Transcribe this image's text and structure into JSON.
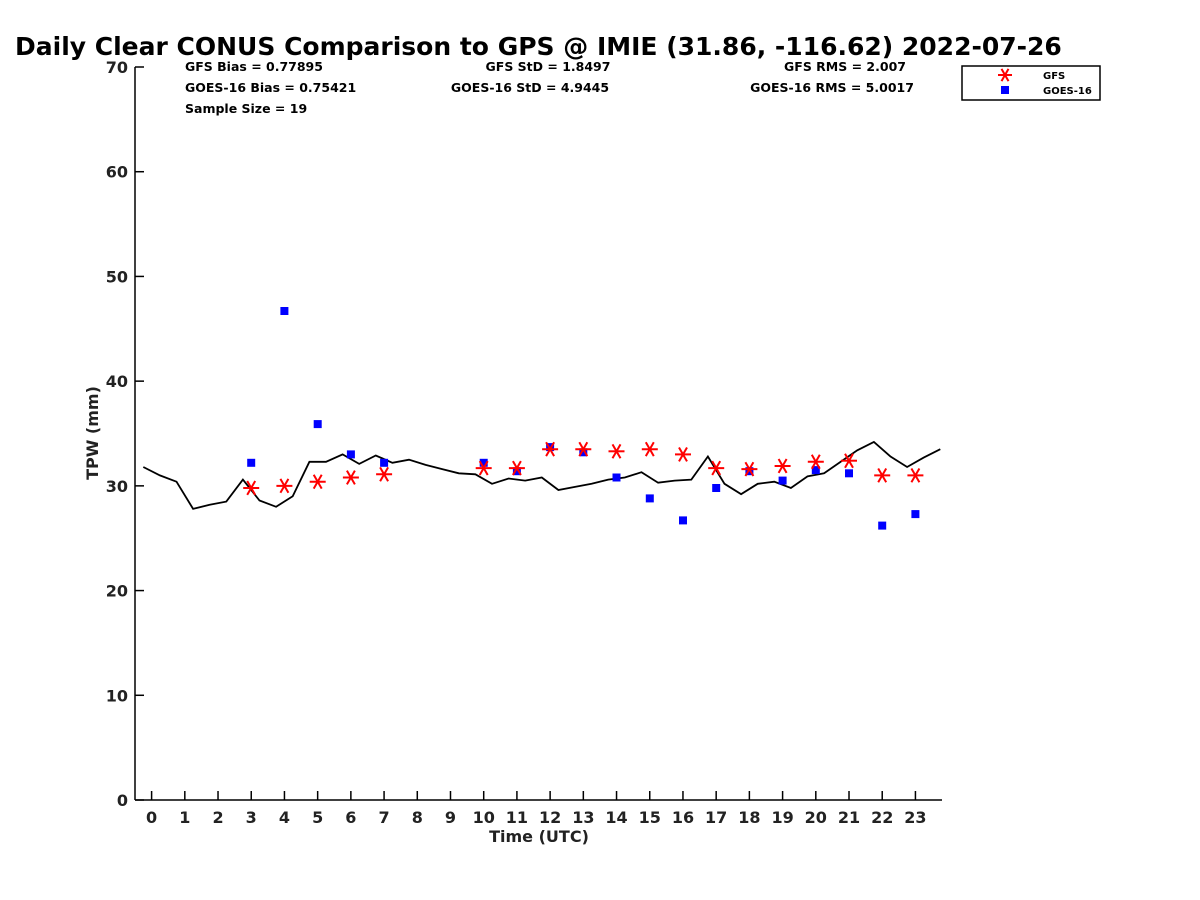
{
  "chart_data": {
    "type": "scatter",
    "title": "Daily Clear CONUS Comparison to GPS @ IMIE (31.86, -116.62) 2022-07-26",
    "xlabel": "Time (UTC)",
    "ylabel": "TPW (mm)",
    "xlim": [
      -0.5,
      23.8
    ],
    "ylim": [
      0,
      70
    ],
    "x_ticks": [
      0,
      1,
      2,
      3,
      4,
      5,
      6,
      7,
      8,
      9,
      10,
      11,
      12,
      13,
      14,
      15,
      16,
      17,
      18,
      19,
      20,
      21,
      22,
      23
    ],
    "y_ticks": [
      0,
      10,
      20,
      30,
      40,
      50,
      60,
      70
    ],
    "grid": false,
    "legend_position": "top-right",
    "stats": {
      "gfs_bias": "GFS Bias = 0.77895",
      "goes_bias": "GOES-16 Bias = 0.75421",
      "sample_size": "Sample Size = 19",
      "gfs_std": "GFS StD = 1.8497",
      "goes_std": "GOES-16 StD = 4.9445",
      "gfs_rms": "GFS RMS = 2.007",
      "goes_rms": "GOES-16 RMS = 5.0017"
    },
    "series": [
      {
        "name": "GPS",
        "kind": "line",
        "color": "#000000",
        "x": [
          -0.25,
          0.25,
          0.75,
          1.25,
          1.75,
          2.25,
          2.75,
          3.25,
          3.75,
          4.25,
          4.75,
          5.25,
          5.75,
          6.25,
          6.75,
          7.25,
          7.75,
          8.25,
          8.75,
          9.25,
          9.75,
          10.25,
          10.75,
          11.25,
          11.75,
          12.25,
          12.75,
          13.25,
          13.75,
          14.25,
          14.75,
          15.25,
          15.75,
          16.25,
          16.75,
          17.25,
          17.75,
          18.25,
          18.75,
          19.25,
          19.75,
          20.25,
          20.75,
          21.25,
          21.75,
          22.25,
          22.75,
          23.25,
          23.75
        ],
        "y": [
          31.8,
          31.0,
          30.4,
          27.8,
          28.2,
          28.5,
          30.6,
          28.6,
          28.0,
          29.0,
          32.3,
          32.3,
          33.0,
          32.1,
          32.9,
          32.2,
          32.5,
          32.0,
          31.6,
          31.2,
          31.1,
          30.2,
          30.7,
          30.5,
          30.8,
          29.6,
          29.9,
          30.2,
          30.6,
          30.8,
          31.3,
          30.3,
          30.5,
          30.6,
          32.8,
          30.2,
          29.2,
          30.2,
          30.4,
          29.8,
          30.9,
          31.2,
          32.3,
          33.4,
          34.2,
          32.8,
          31.8,
          32.7,
          33.5
        ]
      },
      {
        "name": "GFS",
        "kind": "marker",
        "marker": "asterisk",
        "color": "#ff0000",
        "x": [
          3,
          4,
          5,
          6,
          7,
          10,
          11,
          12,
          13,
          14,
          15,
          16,
          17,
          18,
          19,
          20,
          21,
          22,
          23
        ],
        "y": [
          29.8,
          30.0,
          30.4,
          30.8,
          31.1,
          31.7,
          31.7,
          33.5,
          33.5,
          33.3,
          33.5,
          33.0,
          31.7,
          31.6,
          31.9,
          32.3,
          32.4,
          31.0,
          31.0
        ]
      },
      {
        "name": "GOES-16",
        "kind": "marker",
        "marker": "square",
        "color": "#0000ff",
        "x": [
          3,
          4,
          5,
          6,
          7,
          10,
          11,
          12,
          13,
          14,
          15,
          16,
          17,
          18,
          19,
          20,
          21,
          22,
          23
        ],
        "y": [
          32.2,
          46.7,
          35.9,
          33.0,
          32.2,
          32.2,
          31.4,
          33.7,
          33.2,
          30.8,
          28.8,
          26.7,
          29.8,
          31.4,
          30.5,
          31.5,
          31.2,
          26.2,
          27.3
        ]
      }
    ]
  }
}
